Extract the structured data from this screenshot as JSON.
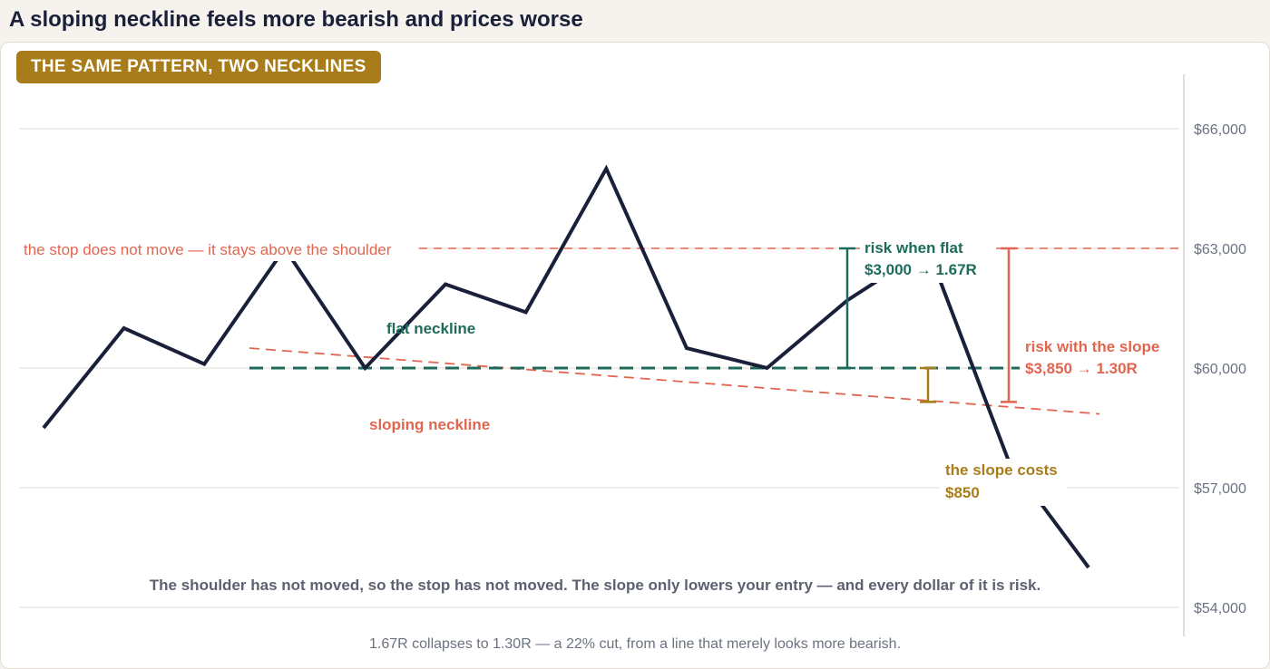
{
  "title": "A sloping neckline feels more bearish and prices worse",
  "badge": "THE SAME PATTERN, TWO NECKLINES",
  "footnote": "1.67R collapses to 1.30R — a 22% cut, from a line that merely looks more bearish.",
  "colors": {
    "price": "#1a1f3a",
    "flat": "#1e6b5c",
    "slope": "#e06650",
    "cost": "#a87c1a",
    "grid": "#e8e4dc",
    "tick": "#6b7280"
  },
  "chart_data": {
    "type": "line",
    "ylim": [
      54000,
      66000
    ],
    "ytick_values": [
      54000,
      57000,
      60000,
      63000,
      66000
    ],
    "ytick_labels": [
      "$54,000",
      "$57,000",
      "$60,000",
      "$63,000",
      "$66,000"
    ],
    "price_path": [
      {
        "t": 0,
        "y": 58500
      },
      {
        "t": 1,
        "y": 61000
      },
      {
        "t": 2,
        "y": 60100
      },
      {
        "t": 3,
        "y": 63000
      },
      {
        "t": 4,
        "y": 60000
      },
      {
        "t": 5,
        "y": 62100
      },
      {
        "t": 6,
        "y": 61400
      },
      {
        "t": 7,
        "y": 65000
      },
      {
        "t": 8,
        "y": 60500
      },
      {
        "t": 9,
        "y": 60000
      },
      {
        "t": 10,
        "y": 61700
      },
      {
        "t": 11,
        "y": 63000
      },
      {
        "t": 12,
        "y": 57700
      },
      {
        "t": 13,
        "y": 55000
      }
    ],
    "stop_level": 63000,
    "flat_neckline": 60000,
    "sloping_neckline": {
      "start": 60500,
      "end": 58850
    },
    "entry_flat": 60000,
    "entry_slope": 59150,
    "risk_flat": {
      "label": "risk when flat",
      "value": "$3,000 → 1.67R"
    },
    "risk_slope": {
      "label": "risk with the slope",
      "value": "$3,850 → 1.30R"
    },
    "slope_cost": {
      "label": "the slope costs",
      "value": "$850"
    },
    "annotations": {
      "stop": "the stop does not move — it stays above the shoulder",
      "flat": "flat neckline",
      "sloping": "sloping neckline",
      "caption": "The shoulder has not moved, so the stop has not moved. The slope only lowers your entry — and every dollar of it is risk."
    }
  }
}
